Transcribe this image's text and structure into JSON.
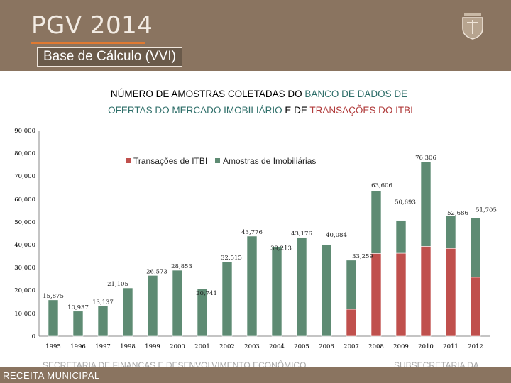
{
  "header": {
    "title": "PGV 2014",
    "subtitle": "Base de Cálculo (VVI)"
  },
  "footer": {
    "left_text": "SECRETARIA DE FINANÇAS E DESENVOLVIMENTO ECONÔMICO",
    "right_text": "SUBSECRETARIA DA",
    "label": "RECEITA MUNICIPAL"
  },
  "colors": {
    "header_bg": "#8a7460",
    "accent_line": "#e07a32",
    "itbi": "#c0504d",
    "imob": "#5e8b73"
  },
  "chart_data": {
    "type": "bar",
    "stacked": true,
    "title_line1_parts": [
      "NÚMERO DE AMOSTRAS COLETADAS DO ",
      "BANCO DE DADOS DE"
    ],
    "title_line2_parts": [
      "OFERTAS DO MERCADO IMOBILIÁRIO",
      " E DE ",
      "TRANSAÇÕES DO ITBI"
    ],
    "categories": [
      "1995",
      "1996",
      "1997",
      "1998",
      "1999",
      "2000",
      "2001",
      "2002",
      "2003",
      "2004",
      "2005",
      "2006",
      "2007",
      "2008",
      "2009",
      "2010",
      "2011",
      "2012"
    ],
    "series": [
      {
        "name": "Transações de ITBI",
        "values": [
          0,
          0,
          0,
          0,
          0,
          0,
          0,
          0,
          0,
          0,
          0,
          0,
          11800,
          36200,
          36300,
          39300,
          38400,
          25800
        ]
      },
      {
        "name": "Amostras de Imobiliárias",
        "values": [
          15875,
          10937,
          13137,
          21105,
          26573,
          28853,
          20741,
          32515,
          43776,
          39213,
          43176,
          40084,
          21459,
          27406,
          14393,
          37006,
          14286,
          25905
        ]
      }
    ],
    "data_labels": [
      "15,875",
      "10,937",
      "13,137",
      "21,105",
      "26,573",
      "28,853",
      "20,741",
      "32,515",
      "43,776",
      "39,213",
      "43,176",
      "40,084",
      "33,259",
      "63,606",
      "50,693",
      "76,306",
      "52,686",
      "51,705"
    ],
    "totals": [
      15875,
      10937,
      13137,
      21105,
      26573,
      28853,
      20741,
      32515,
      43776,
      39213,
      43176,
      40084,
      33259,
      63606,
      50693,
      76306,
      52686,
      51705
    ],
    "y_ticks": [
      "0",
      "10,000",
      "20,000",
      "30,000",
      "40,000",
      "50,000",
      "60,000",
      "70,000",
      "80,000",
      "90,000"
    ],
    "ylim": [
      0,
      90000
    ],
    "grid": false,
    "legend_position": "top"
  }
}
